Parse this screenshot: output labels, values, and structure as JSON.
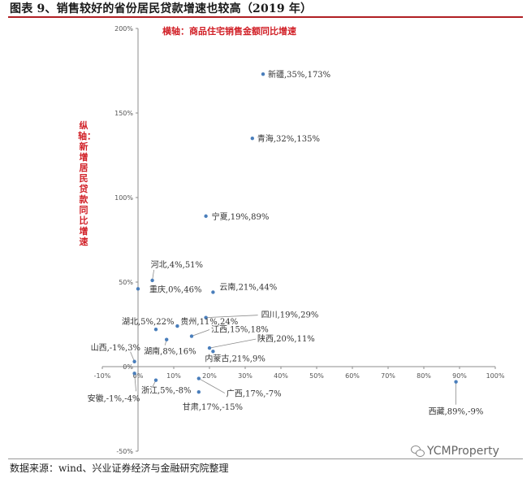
{
  "page": {
    "title": "图表 9、销售较好的省份居民贷款增速也较高（2019 年）",
    "source": "数据来源：wind、兴业证券经济与金融研究院整理",
    "watermark": "YCMProperty",
    "watermark_icon": "wechat-icon"
  },
  "chart_data": {
    "type": "scatter",
    "xlabel": "横轴：商品住宅销售金额同比增速",
    "ylabel": "纵轴：新增居民贷款同比增速",
    "xlim": [
      -10,
      100
    ],
    "ylim": [
      -50,
      200
    ],
    "x_ticks": [
      "-10%",
      "0%",
      "10%",
      "20%",
      "30%",
      "40%",
      "50%",
      "60%",
      "70%",
      "80%",
      "90%",
      "100%"
    ],
    "y_ticks": [
      "-50%",
      "0%",
      "50%",
      "100%",
      "150%",
      "200%"
    ],
    "marker_color": "#4a7ebb",
    "points": [
      {
        "name": "新疆",
        "x": 35,
        "y": 173,
        "label": "新疆,35%,173%"
      },
      {
        "name": "青海",
        "x": 32,
        "y": 135,
        "label": "青海,32%,135%"
      },
      {
        "name": "宁夏",
        "x": 19,
        "y": 89,
        "label": "宁夏,19%,89%"
      },
      {
        "name": "河北",
        "x": 4,
        "y": 51,
        "label": "河北,4%,51%"
      },
      {
        "name": "重庆",
        "x": 0,
        "y": 46,
        "label": "重庆,0%,46%"
      },
      {
        "name": "云南",
        "x": 21,
        "y": 44,
        "label": "云南,21%,44%"
      },
      {
        "name": "贵州",
        "x": 11,
        "y": 24,
        "label": "贵州,11%,24%"
      },
      {
        "name": "湖北",
        "x": 5,
        "y": 22,
        "label": "湖北,5%,22%"
      },
      {
        "name": "四川",
        "x": 19,
        "y": 29,
        "label": "四川,19%,29%"
      },
      {
        "name": "江西",
        "x": 15,
        "y": 18,
        "label": "江西,15%,18%"
      },
      {
        "name": "陕西",
        "x": 20,
        "y": 11,
        "label": "陕西,20%,11%"
      },
      {
        "name": "湖南",
        "x": 8,
        "y": 16,
        "label": "湖南,8%,16%"
      },
      {
        "name": "内蒙古",
        "x": 21,
        "y": 9,
        "label": "内蒙古,21%,9%"
      },
      {
        "name": "山西",
        "x": -1,
        "y": 3,
        "label": "山西,-1%,3%"
      },
      {
        "name": "安徽",
        "x": -1,
        "y": -4,
        "label": "安徽,-1%,-4%"
      },
      {
        "name": "浙江",
        "x": 5,
        "y": -8,
        "label": "浙江,5%,-8%"
      },
      {
        "name": "广西",
        "x": 17,
        "y": -7,
        "label": "广西,17%,-7%"
      },
      {
        "name": "甘肃",
        "x": 17,
        "y": -15,
        "label": "甘肃,17%,-15%"
      },
      {
        "name": "西藏",
        "x": 89,
        "y": -9,
        "label": "西藏,89%,-9%"
      }
    ]
  }
}
